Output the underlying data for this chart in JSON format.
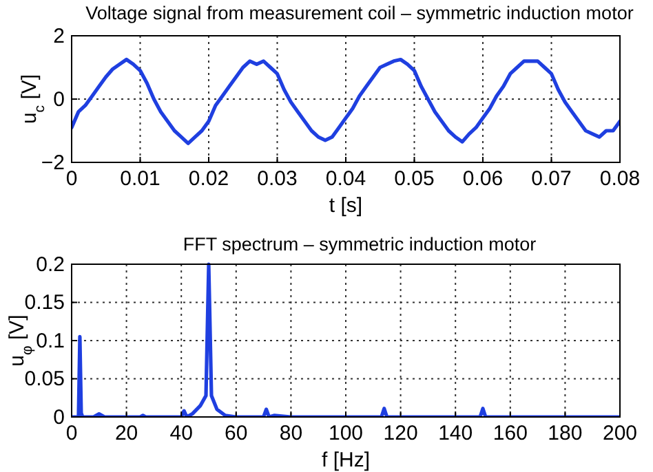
{
  "chart_data": [
    {
      "type": "line",
      "title": "Voltage signal from measurement coil – symmetric induction motor",
      "xlabel": "t [s]",
      "ylabel": "u$_{c}$ [V]",
      "x": [
        0,
        0.001,
        0.002,
        0.003,
        0.004,
        0.005,
        0.006,
        0.007,
        0.008,
        0.009,
        0.01,
        0.011,
        0.012,
        0.013,
        0.014,
        0.015,
        0.016,
        0.017,
        0.018,
        0.019,
        0.02,
        0.021,
        0.022,
        0.023,
        0.024,
        0.025,
        0.026,
        0.027,
        0.028,
        0.029,
        0.03,
        0.031,
        0.032,
        0.033,
        0.034,
        0.035,
        0.036,
        0.037,
        0.038,
        0.039,
        0.04,
        0.041,
        0.042,
        0.043,
        0.044,
        0.045,
        0.046,
        0.047,
        0.048,
        0.049,
        0.05,
        0.051,
        0.052,
        0.053,
        0.054,
        0.055,
        0.056,
        0.057,
        0.058,
        0.059,
        0.06,
        0.061,
        0.062,
        0.063,
        0.064,
        0.065,
        0.066,
        0.067,
        0.068,
        0.069,
        0.07,
        0.071,
        0.072,
        0.073,
        0.074,
        0.075,
        0.076,
        0.077,
        0.078,
        0.079,
        0.08
      ],
      "series": [
        {
          "color": "#1f3fe0",
          "values": [
            -0.9,
            -0.4,
            -0.2,
            0.1,
            0.4,
            0.7,
            0.95,
            1.1,
            1.25,
            1.1,
            0.9,
            0.5,
            0.0,
            -0.4,
            -0.7,
            -1.0,
            -1.2,
            -1.4,
            -1.2,
            -1.0,
            -0.7,
            -0.2,
            0.1,
            0.4,
            0.7,
            1.0,
            1.2,
            1.1,
            1.2,
            1.0,
            0.8,
            0.3,
            -0.1,
            -0.4,
            -0.7,
            -1.0,
            -1.2,
            -1.3,
            -1.2,
            -0.9,
            -0.6,
            -0.3,
            0.1,
            0.4,
            0.7,
            1.0,
            1.1,
            1.2,
            1.25,
            1.1,
            0.9,
            0.4,
            0.0,
            -0.4,
            -0.7,
            -1.0,
            -1.2,
            -1.35,
            -1.1,
            -0.9,
            -0.6,
            -0.3,
            0.1,
            0.4,
            0.8,
            1.0,
            1.2,
            1.2,
            1.2,
            1.0,
            0.8,
            0.3,
            -0.1,
            -0.4,
            -0.7,
            -1.0,
            -1.1,
            -1.2,
            -1.0,
            -1.0,
            -0.7
          ]
        }
      ],
      "xlim": [
        0,
        0.08
      ],
      "xticks": [
        0,
        0.01,
        0.02,
        0.03,
        0.04,
        0.05,
        0.06,
        0.07,
        0.08
      ],
      "ylim": [
        -2,
        2
      ],
      "yticks": [
        -2,
        0,
        2
      ],
      "grid": true,
      "line_style": "solid"
    },
    {
      "type": "line",
      "title": "FFT spectrum – symmetric induction motor",
      "xlabel": "f [Hz]",
      "ylabel": "u$_{φ}$ [V]",
      "x": [
        0,
        2.5,
        3,
        3.5,
        4,
        8,
        10,
        12,
        25,
        26,
        27,
        40,
        41,
        42,
        44,
        47,
        49,
        50,
        51,
        53,
        56,
        60,
        70,
        71,
        72,
        74,
        80,
        113,
        114,
        115,
        149,
        150,
        151,
        200
      ],
      "series": [
        {
          "color": "#1f3fe0",
          "values": [
            0,
            0,
            0.105,
            0.005,
            0,
            0,
            0.004,
            0,
            0,
            0.002,
            0,
            0,
            0.008,
            0,
            0.004,
            0.015,
            0.028,
            0.2,
            0.028,
            0.01,
            0.002,
            0,
            0,
            0.01,
            0,
            0.002,
            0,
            0,
            0.011,
            0,
            0,
            0.011,
            0,
            0
          ]
        }
      ],
      "xlim": [
        0,
        200
      ],
      "xticks": [
        0,
        20,
        40,
        60,
        80,
        100,
        120,
        140,
        160,
        180,
        200
      ],
      "ylim": [
        0,
        0.2
      ],
      "yticks": [
        0,
        0.05,
        0.1,
        0.15,
        0.2
      ],
      "grid": true,
      "line_style": "solid"
    }
  ]
}
